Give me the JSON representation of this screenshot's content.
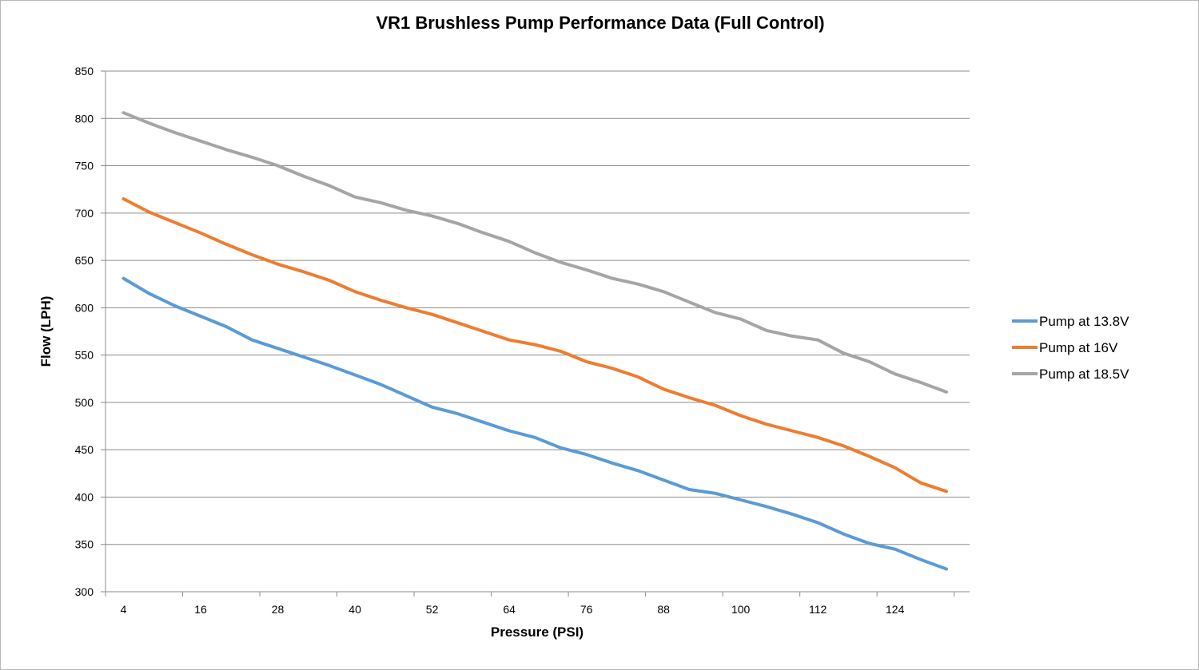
{
  "chart_data": {
    "type": "line",
    "title": "VR1 Brushless Pump Performance Data (Full Control)",
    "xlabel": "Pressure (PSI)",
    "ylabel": "Flow (LPH)",
    "ylim": [
      300,
      850
    ],
    "yticks": [
      300,
      350,
      400,
      450,
      500,
      550,
      600,
      650,
      700,
      750,
      800,
      850
    ],
    "x": [
      4,
      8,
      12,
      16,
      20,
      24,
      28,
      32,
      36,
      40,
      44,
      48,
      52,
      56,
      60,
      64,
      68,
      72,
      76,
      80,
      84,
      88,
      92,
      96,
      100,
      104,
      108,
      112,
      116,
      120,
      124,
      128,
      132
    ],
    "xtick_labels": [
      "4",
      "16",
      "28",
      "40",
      "52",
      "64",
      "76",
      "88",
      "100",
      "112",
      "124"
    ],
    "grid": true,
    "legend_position": "right",
    "series": [
      {
        "name": "Pump at 13.8V",
        "color": "#5b9bd5",
        "values": [
          631,
          615,
          602,
          591,
          580,
          566,
          557,
          548,
          539,
          529,
          519,
          507,
          495,
          488,
          479,
          470,
          463,
          452,
          445,
          436,
          428,
          418,
          408,
          404,
          397,
          390,
          382,
          373,
          361,
          351,
          345,
          334,
          324
        ]
      },
      {
        "name": "Pump at 16V",
        "color": "#ed7d31",
        "values": [
          715,
          701,
          690,
          679,
          667,
          656,
          646,
          638,
          629,
          617,
          608,
          600,
          593,
          584,
          575,
          566,
          561,
          554,
          543,
          536,
          527,
          514,
          505,
          497,
          486,
          477,
          470,
          463,
          454,
          443,
          431,
          415,
          406
        ]
      },
      {
        "name": "Pump at 18.5V",
        "color": "#a5a5a5",
        "values": [
          806,
          795,
          785,
          776,
          767,
          759,
          750,
          739,
          729,
          717,
          711,
          703,
          697,
          689,
          679,
          670,
          658,
          648,
          640,
          631,
          625,
          617,
          606,
          595,
          588,
          576,
          570,
          566,
          552,
          543,
          530,
          521,
          511
        ]
      }
    ]
  }
}
